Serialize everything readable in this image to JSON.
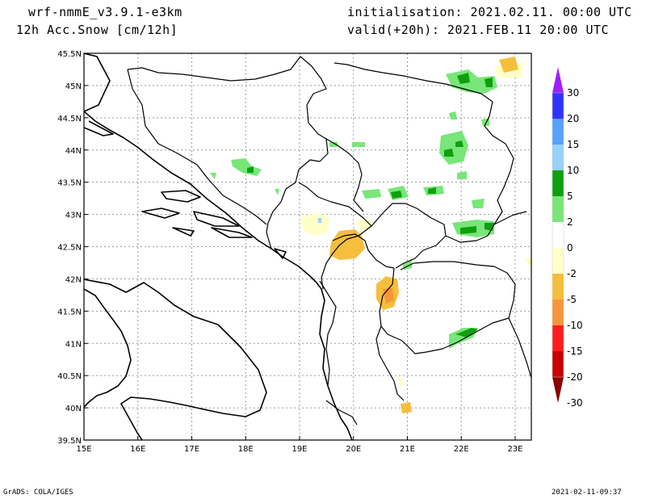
{
  "header": {
    "model": "wrf-nmmE_v3.9.1-e3km",
    "field": "12h Acc.Snow [cm/12h]",
    "init": "initialisation: 2021.02.11.  00:00 UTC",
    "valid": "valid(+20h): 2021.FEB.11 20:00 UTC"
  },
  "footer": {
    "left": "GrADS: COLA/IGES",
    "right": "2021-02-11-09:37"
  },
  "map": {
    "lon_labels": [
      "15E",
      "16E",
      "17E",
      "18E",
      "19E",
      "20E",
      "21E",
      "22E",
      "23E"
    ],
    "lat_labels": [
      "45.5N",
      "45N",
      "44.5N",
      "44N",
      "43.5N",
      "43N",
      "42.5N",
      "42N",
      "41.5N",
      "41N",
      "40.5N",
      "40N",
      "39.5N"
    ],
    "lon_range": [
      15,
      23.3
    ],
    "lat_range": [
      39.5,
      45.5
    ]
  },
  "colorbar": {
    "labels": [
      "30",
      "20",
      "15",
      "10",
      "5",
      "2",
      "0",
      "-2",
      "-5",
      "-10",
      "-15",
      "-20",
      "-30"
    ],
    "colors": [
      "#9f1fff",
      "#3232ff",
      "#5aa0ff",
      "#96d2fa",
      "#0fa00f",
      "#78e678",
      "#ffffff",
      "#ffffc8",
      "#f5be3c",
      "#f5963c",
      "#ff1e1e",
      "#c80000",
      "#8c0000"
    ]
  }
}
